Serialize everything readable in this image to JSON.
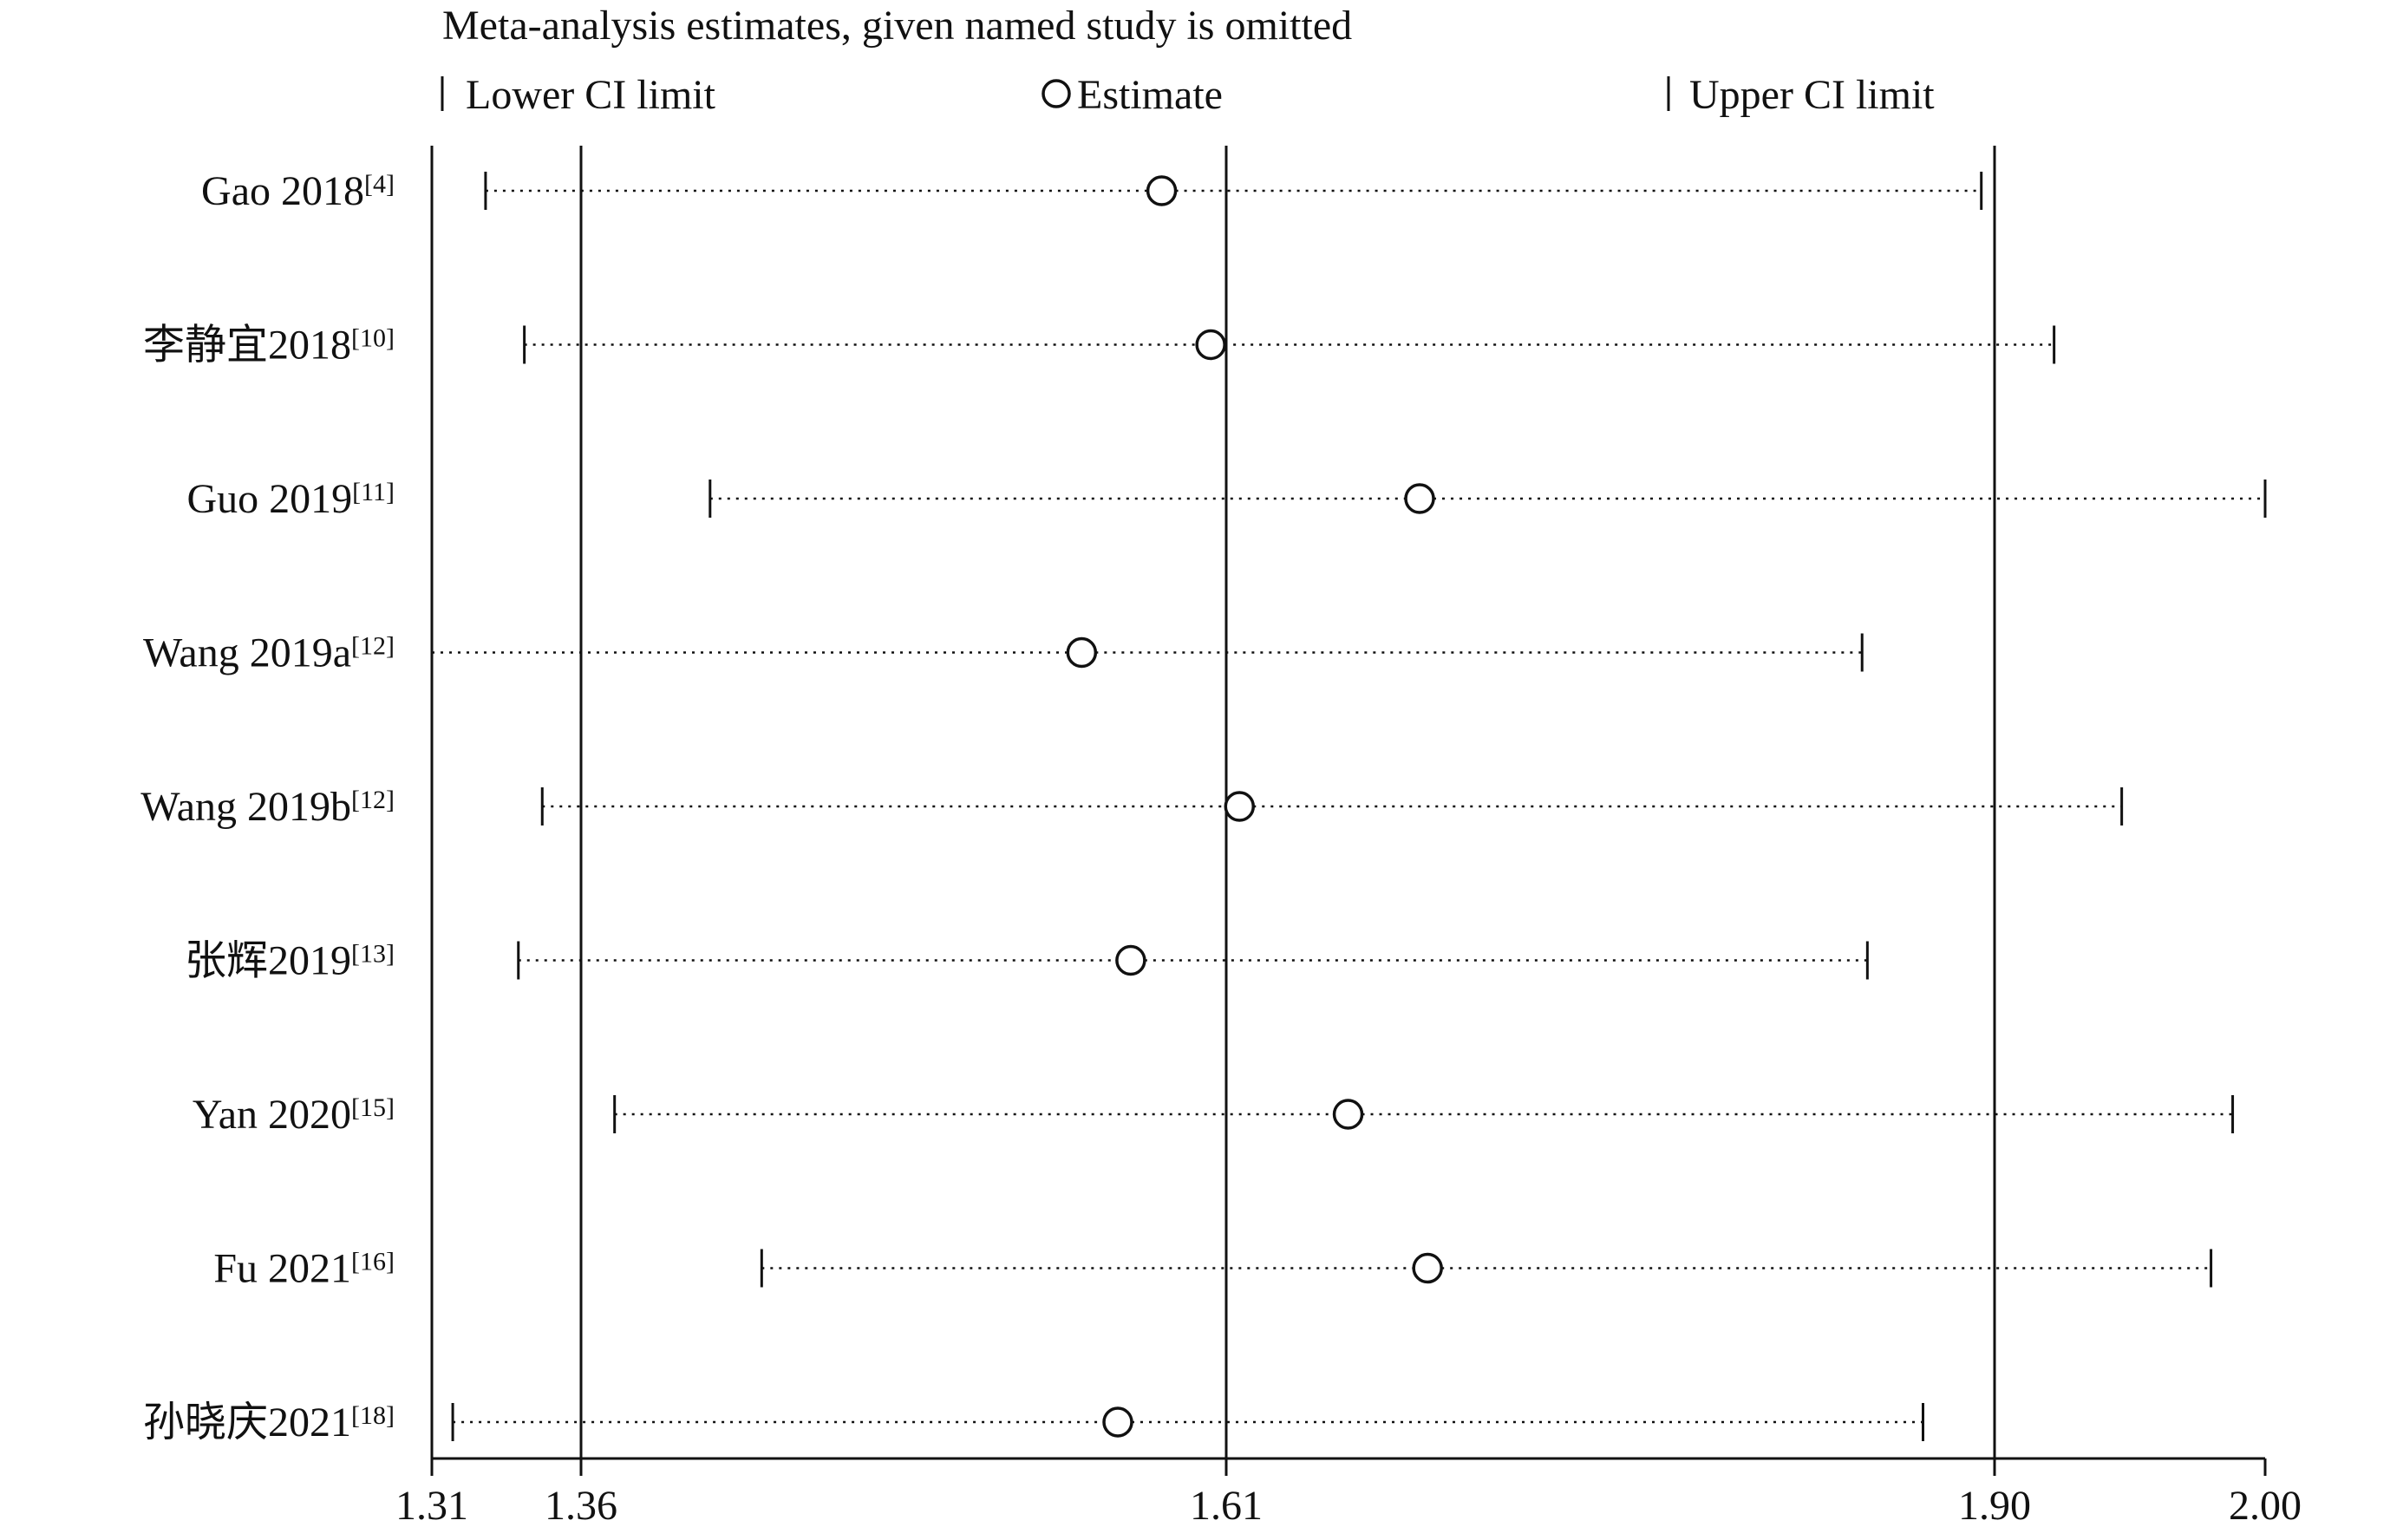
{
  "chart_data": {
    "type": "forest",
    "title": "Meta-analysis estimates, given named study is omitted",
    "legend": {
      "lower": "Lower CI limit",
      "estimate": "Estimate",
      "upper": "Upper CI limit",
      "placement": "top"
    },
    "x_ticks": [
      1.31,
      1.36,
      1.61,
      1.9,
      2.0
    ],
    "x_tick_labels": [
      "1.31",
      "1.36",
      "1.61",
      "1.90",
      "2.00"
    ],
    "xlim": [
      1.31,
      2.0
    ],
    "reference_lines": [
      1.36,
      1.61,
      1.9
    ],
    "studies": [
      {
        "name": "Gao 2018",
        "ref": "[4]",
        "lower": 1.328,
        "estimate": 1.585,
        "upper": 1.895
      },
      {
        "name": "李静宜2018",
        "ref": "[10]",
        "lower": 1.341,
        "estimate": 1.604,
        "upper": 1.922
      },
      {
        "name": "Guo 2019",
        "ref": "[11]",
        "lower": 1.41,
        "estimate": 1.683,
        "upper": 2.0
      },
      {
        "name": "Wang 2019a",
        "ref": "[12]",
        "lower": 1.31,
        "estimate": 1.554,
        "upper": 1.85
      },
      {
        "name": "Wang 2019b",
        "ref": "[12]",
        "lower": 1.347,
        "estimate": 1.615,
        "upper": 1.947
      },
      {
        "name": "张辉2019",
        "ref": "[13]",
        "lower": 1.339,
        "estimate": 1.573,
        "upper": 1.852
      },
      {
        "name": "Yan 2020",
        "ref": "[15]",
        "lower": 1.373,
        "estimate": 1.656,
        "upper": 1.988
      },
      {
        "name": "Fu 2021",
        "ref": "[16]",
        "lower": 1.43,
        "estimate": 1.686,
        "upper": 1.98
      },
      {
        "name": "孙晓庆2021",
        "ref": "[18]",
        "lower": 1.317,
        "estimate": 1.568,
        "upper": 1.873
      }
    ]
  }
}
